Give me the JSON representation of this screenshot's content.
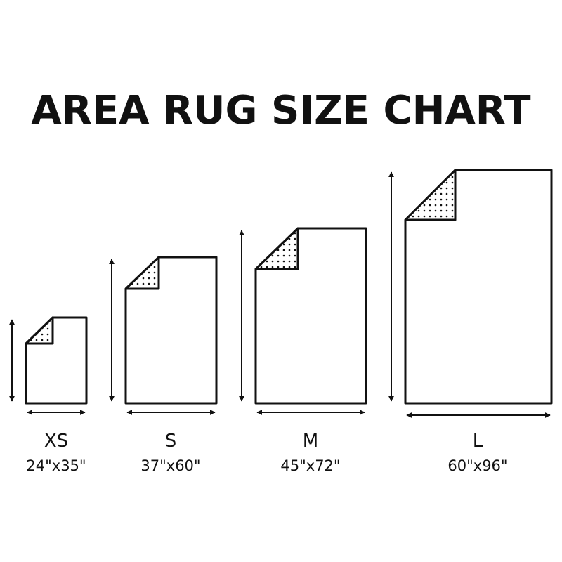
{
  "title": "AREA RUG SIZE CHART",
  "colors": {
    "line": "#111111",
    "background": "#ffffff"
  },
  "sizes": [
    {
      "label": "XS",
      "dimensions": "24\"x35\"",
      "width_in": 24,
      "length_in": 35
    },
    {
      "label": "S",
      "dimensions": "37\"x60\"",
      "width_in": 37,
      "length_in": 60
    },
    {
      "label": "M",
      "dimensions": "45\"x72\"",
      "width_in": 45,
      "length_in": 72
    },
    {
      "label": "L",
      "dimensions": "60\"x96\"",
      "width_in": 60,
      "length_in": 96
    }
  ]
}
